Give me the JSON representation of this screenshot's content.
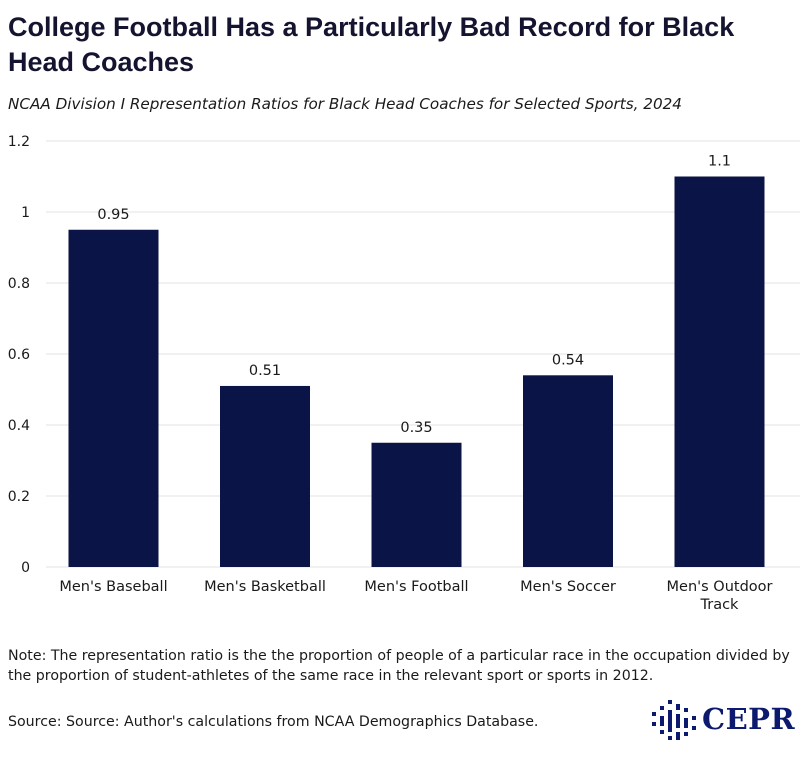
{
  "header": {
    "title": "College Football Has a Particularly Bad Record for Black Head Coaches",
    "subtitle": "NCAA Division I Representation Ratios for Black Head Coaches for Selected Sports, 2024"
  },
  "footer": {
    "note": "Note: The representation ratio is the the proportion of people of a particular race in the occupation divided by the proportion of student-athletes of the same race in the relevant sport or sports in 2012.",
    "source": "Source: Source: Author's calculations from NCAA Demographics Database.",
    "logo_text": "CEPR"
  },
  "colors": {
    "bar": "#0b1446",
    "grid": "#e3e3e3",
    "logo": "#0b1a6e"
  },
  "chart_data": {
    "type": "bar",
    "title": "College Football Has a Particularly Bad Record for Black Head Coaches",
    "subtitle": "NCAA Division I Representation Ratios for Black Head Coaches for Selected Sports, 2024",
    "categories": [
      [
        "Men's Baseball"
      ],
      [
        "Men's Basketball"
      ],
      [
        "Men's Football"
      ],
      [
        "Men's Soccer"
      ],
      [
        "Men's Outdoor",
        "Track"
      ]
    ],
    "values": [
      0.95,
      0.51,
      0.35,
      0.54,
      1.1
    ],
    "data_labels": [
      "0.95",
      "0.51",
      "0.35",
      "0.54",
      "1.1"
    ],
    "yticks": [
      0,
      0.2,
      0.4,
      0.6,
      0.8,
      1,
      1.2
    ],
    "ytick_labels": [
      "0",
      "0.2",
      "0.4",
      "0.6",
      "0.8",
      "1",
      "1.2"
    ],
    "ylim": [
      0,
      1.2
    ],
    "xlabel": "",
    "ylabel": "",
    "grid": true,
    "legend": "none"
  }
}
